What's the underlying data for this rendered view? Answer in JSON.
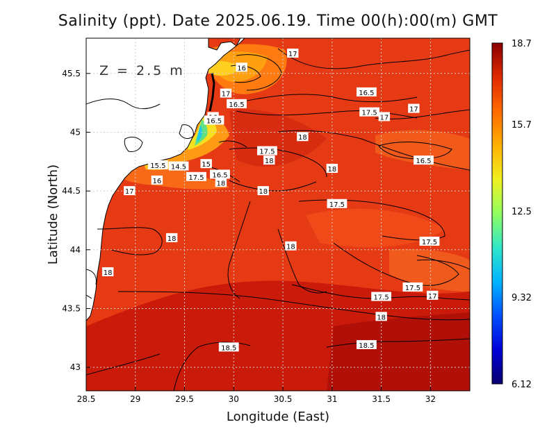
{
  "chart_data": {
    "type": "heatmap",
    "title": "Salinity (ppt). Date 2025.06.19. Time 00(h):00(m) GMT",
    "xlabel": "Longitude (East)",
    "ylabel": "Latitude (North)",
    "xlim": [
      28.5,
      32.4
    ],
    "ylim": [
      42.8,
      45.8
    ],
    "x_ticks": [
      "28.5",
      "29",
      "29.5",
      "30",
      "30.5",
      "31",
      "31.5",
      "32"
    ],
    "y_ticks": [
      "43",
      "43.5",
      "44",
      "44.5",
      "45",
      "45.5"
    ],
    "grid": true,
    "annotation": "Z = 2.5 m",
    "colorbar": {
      "min": 6.12,
      "max": 18.7,
      "tick_labels": [
        "18.7",
        "15.7",
        "12.5",
        "9.32",
        "6.12"
      ],
      "tick_values": [
        18.7,
        15.7,
        12.5,
        9.32,
        6.12
      ],
      "colors": [
        "#08006e",
        "#0000d8",
        "#0050ff",
        "#00b4ff",
        "#30e6c8",
        "#90ff60",
        "#f0f020",
        "#ffb000",
        "#ff6a00",
        "#e02a00",
        "#8a0000"
      ]
    },
    "contour_labels": [
      {
        "text": "17",
        "lon": 30.6,
        "lat": 45.67
      },
      {
        "text": "16",
        "lon": 30.08,
        "lat": 45.55
      },
      {
        "text": "17",
        "lon": 29.92,
        "lat": 45.33
      },
      {
        "text": "16.5",
        "lon": 30.03,
        "lat": 45.24
      },
      {
        "text": "16.5",
        "lon": 31.35,
        "lat": 45.34
      },
      {
        "text": "17.5",
        "lon": 31.38,
        "lat": 45.17
      },
      {
        "text": "17",
        "lon": 31.53,
        "lat": 45.13
      },
      {
        "text": "17",
        "lon": 31.83,
        "lat": 45.2
      },
      {
        "text": "16",
        "lon": 29.79,
        "lat": 45.13
      },
      {
        "text": "16.5",
        "lon": 29.8,
        "lat": 45.1
      },
      {
        "text": "18",
        "lon": 30.7,
        "lat": 44.96
      },
      {
        "text": "17.5",
        "lon": 30.34,
        "lat": 44.84
      },
      {
        "text": "18",
        "lon": 30.36,
        "lat": 44.76
      },
      {
        "text": "16.5",
        "lon": 31.93,
        "lat": 44.76
      },
      {
        "text": "15.5",
        "lon": 29.23,
        "lat": 44.72
      },
      {
        "text": "14.5",
        "lon": 29.44,
        "lat": 44.71
      },
      {
        "text": "15",
        "lon": 29.72,
        "lat": 44.73
      },
      {
        "text": "18",
        "lon": 31.0,
        "lat": 44.69
      },
      {
        "text": "16",
        "lon": 29.22,
        "lat": 44.59
      },
      {
        "text": "17.5",
        "lon": 29.62,
        "lat": 44.62
      },
      {
        "text": "16.5",
        "lon": 29.86,
        "lat": 44.64
      },
      {
        "text": "18",
        "lon": 29.87,
        "lat": 44.57
      },
      {
        "text": "18",
        "lon": 30.3,
        "lat": 44.5
      },
      {
        "text": "17",
        "lon": 28.94,
        "lat": 44.5
      },
      {
        "text": "17.5",
        "lon": 31.05,
        "lat": 44.39
      },
      {
        "text": "18",
        "lon": 29.37,
        "lat": 44.1
      },
      {
        "text": "18",
        "lon": 30.58,
        "lat": 44.03
      },
      {
        "text": "17.5",
        "lon": 31.99,
        "lat": 44.07
      },
      {
        "text": "18",
        "lon": 28.72,
        "lat": 43.81
      },
      {
        "text": "17.5",
        "lon": 31.82,
        "lat": 43.68
      },
      {
        "text": "17",
        "lon": 32.02,
        "lat": 43.61
      },
      {
        "text": "17.5",
        "lon": 31.5,
        "lat": 43.6
      },
      {
        "text": "18",
        "lon": 31.5,
        "lat": 43.43
      },
      {
        "text": "18.5",
        "lon": 29.95,
        "lat": 43.17
      },
      {
        "text": "18.5",
        "lon": 31.35,
        "lat": 43.19
      }
    ]
  }
}
